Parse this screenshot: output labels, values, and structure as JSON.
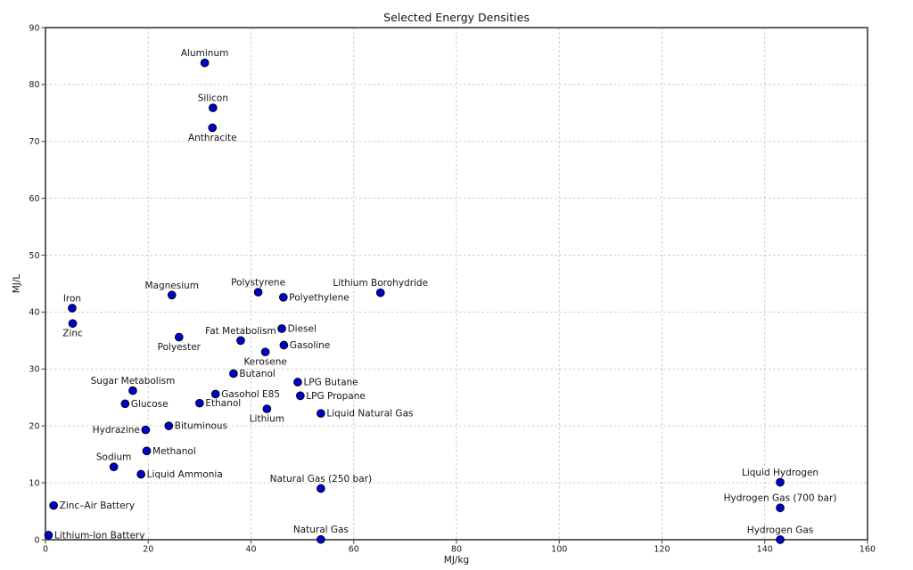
{
  "chart_data": {
    "type": "scatter",
    "title": "Selected Energy Densities",
    "xlabel": "MJ/kg",
    "ylabel": "MJ/L",
    "xlim": [
      0,
      160
    ],
    "ylim": [
      0,
      90
    ],
    "xticks": [
      0,
      20,
      40,
      60,
      80,
      100,
      120,
      140,
      160
    ],
    "yticks": [
      0,
      10,
      20,
      30,
      40,
      50,
      60,
      70,
      80,
      90
    ],
    "grid": true,
    "legend": "none",
    "marker_color": "#0000cd",
    "marker_edge_color": "#000026",
    "points": [
      {
        "label": "Aluminum",
        "x": 31.0,
        "y": 83.8,
        "pos": "above"
      },
      {
        "label": "Silicon",
        "x": 32.6,
        "y": 75.9,
        "pos": "above"
      },
      {
        "label": "Anthracite",
        "x": 32.5,
        "y": 72.4,
        "pos": "below"
      },
      {
        "label": "Polystyrene",
        "x": 41.4,
        "y": 43.5,
        "pos": "above"
      },
      {
        "label": "Lithium Borohydride",
        "x": 65.2,
        "y": 43.4,
        "pos": "above"
      },
      {
        "label": "Magnesium",
        "x": 24.6,
        "y": 43.0,
        "pos": "above"
      },
      {
        "label": "Polyethylene",
        "x": 46.3,
        "y": 42.6,
        "pos": "right"
      },
      {
        "label": "Iron",
        "x": 5.2,
        "y": 40.7,
        "pos": "above"
      },
      {
        "label": "Zinc",
        "x": 5.3,
        "y": 38.0,
        "pos": "below"
      },
      {
        "label": "Diesel",
        "x": 46.0,
        "y": 37.1,
        "pos": "right"
      },
      {
        "label": "Polyester",
        "x": 26.0,
        "y": 35.6,
        "pos": "below"
      },
      {
        "label": "Fat Metabolism",
        "x": 38.0,
        "y": 35.0,
        "pos": "above"
      },
      {
        "label": "Gasoline",
        "x": 46.4,
        "y": 34.2,
        "pos": "right"
      },
      {
        "label": "Kerosene",
        "x": 42.8,
        "y": 33.0,
        "pos": "below"
      },
      {
        "label": "Butanol",
        "x": 36.6,
        "y": 29.2,
        "pos": "right"
      },
      {
        "label": "LPG Butane",
        "x": 49.1,
        "y": 27.7,
        "pos": "right"
      },
      {
        "label": "Sugar Metabolism",
        "x": 17.0,
        "y": 26.2,
        "pos": "above"
      },
      {
        "label": "Gasohol E85",
        "x": 33.1,
        "y": 25.6,
        "pos": "right"
      },
      {
        "label": "LPG Propane",
        "x": 49.6,
        "y": 25.3,
        "pos": "right"
      },
      {
        "label": "Ethanol",
        "x": 30.0,
        "y": 24.0,
        "pos": "right"
      },
      {
        "label": "Glucose",
        "x": 15.5,
        "y": 23.9,
        "pos": "right"
      },
      {
        "label": "Lithium",
        "x": 43.1,
        "y": 23.0,
        "pos": "below"
      },
      {
        "label": "Liquid Natural Gas",
        "x": 53.6,
        "y": 22.2,
        "pos": "right"
      },
      {
        "label": "Bituminous",
        "x": 24.0,
        "y": 20.0,
        "pos": "right"
      },
      {
        "label": "Hydrazine",
        "x": 19.5,
        "y": 19.3,
        "pos": "left"
      },
      {
        "label": "Methanol",
        "x": 19.7,
        "y": 15.6,
        "pos": "right"
      },
      {
        "label": "Sodium",
        "x": 13.3,
        "y": 12.8,
        "pos": "above"
      },
      {
        "label": "Liquid Ammonia",
        "x": 18.6,
        "y": 11.5,
        "pos": "right"
      },
      {
        "label": "Liquid Hydrogen",
        "x": 143.0,
        "y": 10.1,
        "pos": "above"
      },
      {
        "label": "Natural Gas (250 bar)",
        "x": 53.6,
        "y": 9.0,
        "pos": "above"
      },
      {
        "label": "Zinc–Air Battery",
        "x": 1.59,
        "y": 6.02,
        "pos": "right"
      },
      {
        "label": "Hydrogen Gas (700 bar)",
        "x": 143.0,
        "y": 5.6,
        "pos": "above"
      },
      {
        "label": "Lithium-Ion Battery",
        "x": 0.6,
        "y": 0.8,
        "pos": "right"
      },
      {
        "label": "Natural Gas",
        "x": 53.6,
        "y": 0.04,
        "pos": "above"
      },
      {
        "label": "Hydrogen Gas",
        "x": 143.0,
        "y": 0.01,
        "pos": "above"
      }
    ]
  }
}
